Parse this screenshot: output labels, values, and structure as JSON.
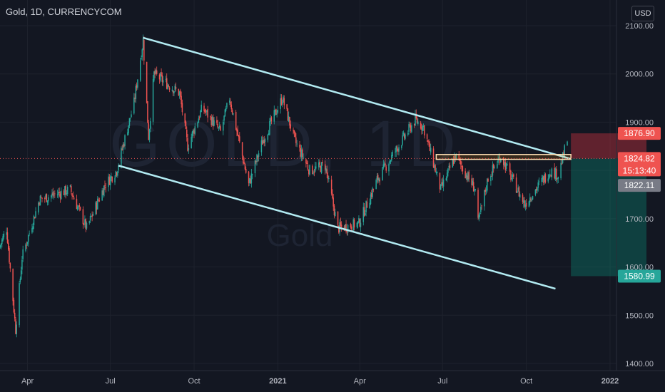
{
  "header": {
    "title": "Gold, 1D, CURRENCYCOM",
    "currency": "USD"
  },
  "watermark": {
    "symbol": "GOLD, 1D",
    "name": "Gold"
  },
  "price_labels": {
    "target_top": "1876.90",
    "current_price": "1824.82",
    "countdown": "15:13:40",
    "prev_close": "1822.11",
    "stop_bottom": "1580.99"
  },
  "colors": {
    "background": "#131722",
    "up": "#26a69a",
    "down": "#ef5350",
    "trendline": "#b2ebf2",
    "grid": "#1e222d",
    "axis_text": "#b2b5be"
  },
  "chart_data": {
    "type": "candlestick",
    "title": "Gold, 1D, CURRENCYCOM",
    "y_axis": {
      "ticks": [
        "2100.00",
        "2000.00",
        "1900.00",
        "1800.00",
        "1700.00",
        "1600.00",
        "1500.00",
        "1400.00"
      ],
      "range": [
        1385,
        2110
      ],
      "position": "right"
    },
    "x_axis": {
      "ticks": [
        "Apr",
        "Jul",
        "Oct",
        "2021",
        "Apr",
        "Jul",
        "Oct",
        "2022"
      ],
      "range": [
        "2020-03-01",
        "2022-02-28"
      ]
    },
    "grid": true,
    "price_path": [
      [
        "2020-03-01",
        1640
      ],
      [
        "2020-03-09",
        1680
      ],
      [
        "2020-03-19",
        1470
      ],
      [
        "2020-03-26",
        1620
      ],
      [
        "2020-04-14",
        1740
      ],
      [
        "2020-05-18",
        1760
      ],
      [
        "2020-06-05",
        1680
      ],
      [
        "2020-06-25",
        1770
      ],
      [
        "2020-07-08",
        1800
      ],
      [
        "2020-07-27",
        1940
      ],
      [
        "2020-08-06",
        2070
      ],
      [
        "2020-08-12",
        1870
      ],
      [
        "2020-08-18",
        2000
      ],
      [
        "2020-09-15",
        1960
      ],
      [
        "2020-09-24",
        1850
      ],
      [
        "2020-10-10",
        1930
      ],
      [
        "2020-10-30",
        1880
      ],
      [
        "2020-11-09",
        1950
      ],
      [
        "2020-11-30",
        1770
      ],
      [
        "2020-12-15",
        1860
      ],
      [
        "2021-01-06",
        1950
      ],
      [
        "2021-01-20",
        1860
      ],
      [
        "2021-02-05",
        1800
      ],
      [
        "2021-02-22",
        1810
      ],
      [
        "2021-03-08",
        1680
      ],
      [
        "2021-03-31",
        1690
      ],
      [
        "2021-04-20",
        1780
      ],
      [
        "2021-05-10",
        1840
      ],
      [
        "2021-06-01",
        1905
      ],
      [
        "2021-06-10",
        1890
      ],
      [
        "2021-06-29",
        1760
      ],
      [
        "2021-07-15",
        1830
      ],
      [
        "2021-08-06",
        1760
      ],
      [
        "2021-08-09",
        1690
      ],
      [
        "2021-08-20",
        1785
      ],
      [
        "2021-09-03",
        1830
      ],
      [
        "2021-09-29",
        1730
      ],
      [
        "2021-10-15",
        1770
      ],
      [
        "2021-10-27",
        1800
      ],
      [
        "2021-11-05",
        1790
      ],
      [
        "2021-11-15",
        1862
      ]
    ],
    "annotations": {
      "channel_upper": [
        [
          "2020-08-06",
          2075
        ],
        [
          "2021-11-19",
          1824
        ]
      ],
      "channel_lower": [
        [
          "2020-07-10",
          1810
        ],
        [
          "2021-11-02",
          1555
        ]
      ],
      "resistance_zone": {
        "x": [
          "2021-06-24",
          "2021-11-19"
        ],
        "y": [
          1823,
          1833
        ]
      },
      "short_position": {
        "x": [
          "2021-11-19",
          "2022-02-10"
        ],
        "entry": 1824.82,
        "target": 1580.99,
        "stop": 1876.9
      }
    }
  }
}
